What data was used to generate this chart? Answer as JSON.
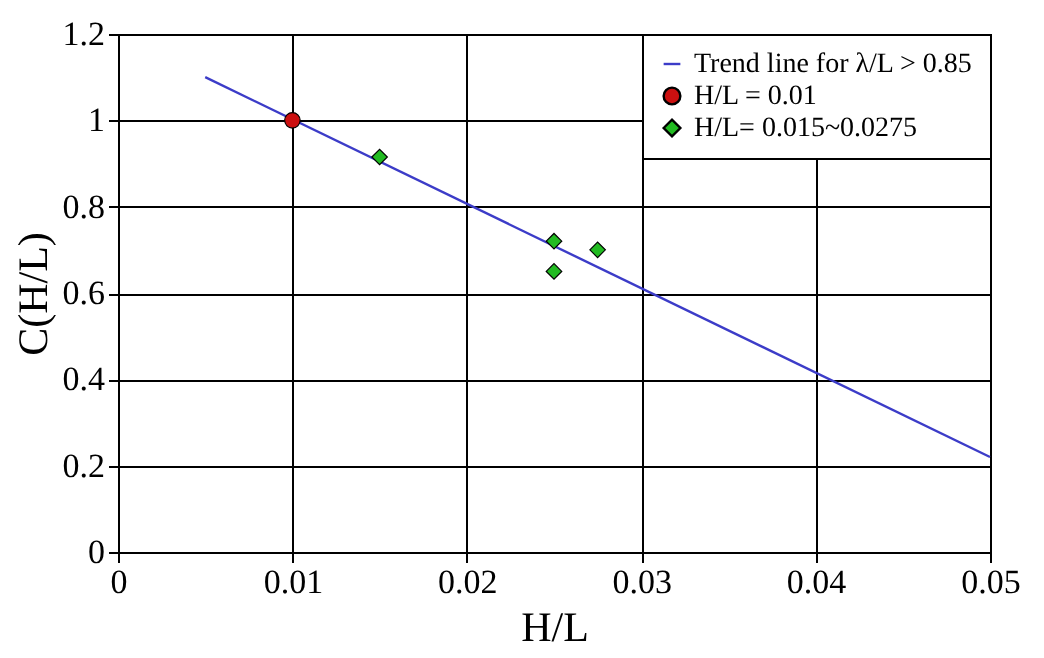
{
  "chart_data": {
    "type": "scatter",
    "xlabel": "H/L",
    "ylabel": "C(H/L)",
    "xlim": [
      0,
      0.05
    ],
    "xticks": [
      0,
      0.01,
      0.02,
      0.03,
      0.04,
      0.05
    ],
    "ylim": [
      0,
      1.2
    ],
    "yticks": [
      0,
      0.2,
      0.4,
      0.6,
      0.8,
      1,
      1.2
    ],
    "grid": true,
    "legend": "top right",
    "series": [
      {
        "name": "Trend line for λ/L > 0.85",
        "type": "line",
        "color": "#3c3cc8",
        "marker": "none",
        "x": [
          0.005,
          0.05
        ],
        "values": [
          1.1,
          0.22
        ]
      },
      {
        "name": "H/L = 0.01",
        "color": "#cc1010",
        "marker": "circle",
        "x": [
          0.01
        ],
        "values": [
          1.0
        ]
      },
      {
        "name": "H/L= 0.015~0.0275",
        "color": "#22bb22",
        "marker": "diamond",
        "x": [
          0.015,
          0.025,
          0.025,
          0.0275
        ],
        "values": [
          0.915,
          0.72,
          0.65,
          0.7
        ]
      }
    ]
  }
}
